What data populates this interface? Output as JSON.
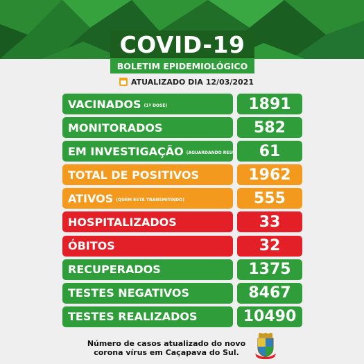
{
  "header": {
    "title": "COVID-19",
    "subtitle": "BOLETIM EPIDEMIOLÓGICO",
    "updated_label": "ATUALIZADO DIA 12/03/2021"
  },
  "colors": {
    "green": "#2f9e3a",
    "orange": "#f39a1e",
    "red": "#e32027",
    "dark_green": "#1c5e1e"
  },
  "rows": [
    {
      "label": "VACINADOS",
      "note": "(1ª DOSE)",
      "value": "1891",
      "color": "green"
    },
    {
      "label": "MONITORADOS",
      "note": "",
      "value": "582",
      "color": "green"
    },
    {
      "label": "EM INVESTIGAÇÃO",
      "note": "(AGUARDANDO RESULTADO)",
      "value": "61",
      "color": "green"
    },
    {
      "label": "TOTAL DE POSITIVOS",
      "note": "",
      "value": "1962",
      "color": "orange"
    },
    {
      "label": "ATIVOS",
      "note": "(QUEM ESTÁ TRANSMITINDO)",
      "value": "555",
      "color": "orange"
    },
    {
      "label": "HOSPITALIZADOS",
      "note": "",
      "value": "33",
      "color": "red"
    },
    {
      "label": "ÓBITOS",
      "note": "",
      "value": "32",
      "color": "red"
    },
    {
      "label": "RECUPERADOS",
      "note": "",
      "value": "1375",
      "color": "green"
    },
    {
      "label": "TESTES NEGATIVOS",
      "note": "",
      "value": "8467",
      "color": "green"
    },
    {
      "label": "TESTES REALIZADOS",
      "note": "",
      "value": "10490",
      "color": "green"
    }
  ],
  "footer": {
    "line1": "Número de casos atualizado do novo",
    "line2": "corona vírus em Caçapava do Sul.",
    "crest_icon": "municipal-crest-icon"
  }
}
